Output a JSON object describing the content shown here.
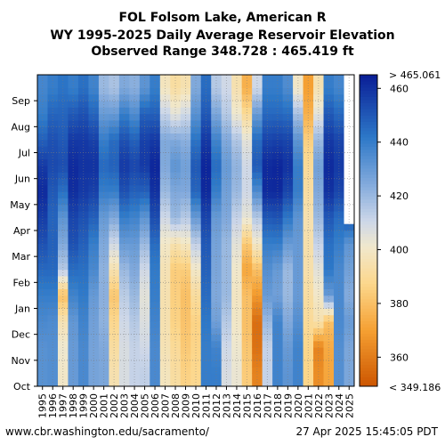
{
  "chart_data": {
    "type": "heatmap",
    "title_lines": [
      "FOL Folsom Lake, American R",
      "WY 1995-2025 Daily Average Reservoir Elevation",
      "Observed Range 348.728 : 465.419 ft"
    ],
    "x_categories": [
      "1995",
      "1996",
      "1997",
      "1998",
      "1999",
      "2000",
      "2001",
      "2002",
      "2003",
      "2004",
      "2005",
      "2006",
      "2007",
      "2008",
      "2009",
      "2010",
      "2011",
      "2012",
      "2013",
      "2014",
      "2015",
      "2016",
      "2017",
      "2018",
      "2019",
      "2020",
      "2021",
      "2022",
      "2023",
      "2024",
      "2025"
    ],
    "y_months": [
      "Oct",
      "Nov",
      "Dec",
      "Jan",
      "Feb",
      "Mar",
      "Apr",
      "May",
      "Jun",
      "Jul",
      "Aug",
      "Sep"
    ],
    "colorbar": {
      "top_label": "> 465.061",
      "bottom_label": "< 349.186",
      "ticks": [
        360,
        380,
        400,
        420,
        440,
        460
      ],
      "range": [
        349.186,
        465.061
      ]
    },
    "grid": true,
    "elevation_profiles": [
      [
        433,
        433,
        436,
        440,
        446,
        452,
        457,
        462,
        458,
        448,
        440,
        437
      ],
      [
        434,
        434,
        435,
        440,
        446,
        448,
        447,
        450,
        454,
        452,
        447,
        440
      ],
      [
        400,
        402,
        396,
        380,
        415,
        425,
        432,
        444,
        453,
        450,
        447,
        443
      ],
      [
        430,
        430,
        431,
        438,
        445,
        452,
        455,
        461,
        462,
        458,
        450,
        440
      ],
      [
        436,
        436,
        438,
        441,
        444,
        448,
        452,
        458,
        460,
        458,
        452,
        444
      ],
      [
        427,
        427,
        428,
        430,
        436,
        440,
        448,
        456,
        460,
        456,
        447,
        438
      ],
      [
        426,
        425,
        422,
        423,
        422,
        425,
        430,
        440,
        446,
        440,
        430,
        420
      ],
      [
        395,
        392,
        388,
        382,
        395,
        410,
        425,
        440,
        448,
        445,
        430,
        417
      ],
      [
        408,
        408,
        410,
        414,
        420,
        430,
        440,
        452,
        458,
        452,
        440,
        425
      ],
      [
        412,
        412,
        415,
        420,
        425,
        430,
        438,
        448,
        455,
        448,
        435,
        423
      ],
      [
        413,
        410,
        407,
        405,
        410,
        420,
        432,
        448,
        458,
        456,
        448,
        432
      ],
      [
        436,
        436,
        438,
        440,
        441,
        445,
        453,
        460,
        463,
        458,
        448,
        440
      ],
      [
        398,
        396,
        395,
        395,
        396,
        400,
        410,
        420,
        425,
        425,
        412,
        398
      ],
      [
        392,
        390,
        386,
        385,
        384,
        395,
        420,
        425,
        432,
        425,
        405,
        392
      ],
      [
        386,
        383,
        381,
        380,
        384,
        399,
        415,
        425,
        428,
        423,
        410,
        395
      ],
      [
        388,
        387,
        386,
        391,
        400,
        413,
        430,
        447,
        450,
        443,
        433,
        425
      ],
      [
        440,
        440,
        442,
        445,
        448,
        450,
        455,
        462,
        463,
        458,
        450,
        445
      ],
      [
        440,
        438,
        428,
        425,
        426,
        427,
        430,
        440,
        445,
        438,
        426,
        415
      ],
      [
        408,
        410,
        415,
        420,
        420,
        420,
        425,
        428,
        430,
        425,
        415,
        410
      ],
      [
        403,
        402,
        400,
        399,
        401,
        405,
        412,
        420,
        422,
        416,
        402,
        395
      ],
      [
        384,
        382,
        380,
        380,
        372,
        383,
        404,
        410,
        410,
        405,
        390,
        375
      ],
      [
        362,
        357,
        356,
        368,
        380,
        400,
        415,
        435,
        450,
        445,
        430,
        410
      ],
      [
        412,
        412,
        420,
        430,
        434,
        440,
        450,
        462,
        462,
        455,
        446,
        440
      ],
      [
        438,
        438,
        438,
        428,
        430,
        440,
        451,
        462,
        463,
        456,
        446,
        440
      ],
      [
        432,
        430,
        425,
        420,
        420,
        430,
        442,
        455,
        460,
        455,
        445,
        435
      ],
      [
        438,
        438,
        434,
        430,
        430,
        430,
        432,
        440,
        440,
        432,
        418,
        400
      ],
      [
        387,
        387,
        390,
        392,
        394,
        394,
        395,
        392,
        390,
        385,
        375,
        370
      ],
      [
        365,
        362,
        395,
        400,
        405,
        412,
        420,
        425,
        428,
        420,
        405,
        395
      ],
      [
        372,
        373,
        380,
        430,
        442,
        444,
        450,
        460,
        462,
        458,
        450,
        440
      ],
      [
        434,
        434,
        436,
        436,
        436,
        440,
        445,
        455,
        458,
        455,
        446,
        437
      ],
      [
        426,
        426,
        430,
        424,
        428,
        432,
        452,
        458,
        460,
        460,
        460,
        460
      ]
    ]
  },
  "footer": {
    "left": "www.cbr.washington.edu/sacramento/",
    "right": "27 Apr 2025 15:45:05 PDT"
  }
}
